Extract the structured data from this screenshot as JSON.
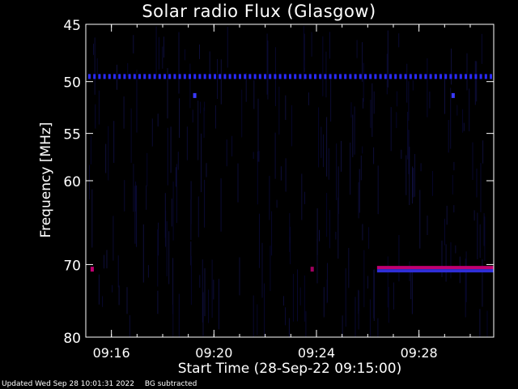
{
  "chart_data": {
    "type": "heatmap",
    "title": "Solar radio Flux (Glasgow)",
    "xlabel": "Start Time (28-Sep-22 09:15:00)",
    "ylabel": "Frequency [MHz]",
    "x_start": "09:15:00",
    "x_end": "09:30:55",
    "x_ticks": [
      "09:16",
      "09:20",
      "09:24",
      "09:28"
    ],
    "y_ticks": [
      45,
      50,
      55,
      60,
      70,
      80
    ],
    "ylim": [
      45,
      80
    ],
    "y_scale": "log",
    "y_direction": "increasing-downward",
    "background_color": "#000000",
    "features": [
      {
        "kind": "interference-line",
        "frequency_mhz": 49.5,
        "time_start": "09:15:00",
        "time_end": "09:30:55",
        "color": "#2a2aff"
      },
      {
        "kind": "interference-line",
        "frequency_mhz": 70.6,
        "time_start": "09:26:20",
        "time_end": "09:30:55",
        "color": "#c00070"
      },
      {
        "kind": "spot",
        "frequency_mhz": 51.3,
        "time": "09:19:15",
        "color": "#3a3aff"
      },
      {
        "kind": "spot",
        "frequency_mhz": 51.3,
        "time": "09:29:20",
        "color": "#3a3aff"
      },
      {
        "kind": "spot",
        "frequency_mhz": 70.6,
        "time": "09:15:15",
        "color": "#c00070"
      },
      {
        "kind": "spot",
        "frequency_mhz": 70.6,
        "time": "09:23:50",
        "color": "#a00060"
      }
    ]
  },
  "footer": {
    "updated": "Updated Wed Sep 28 10:01:31 2022",
    "note": "BG subtracted"
  }
}
